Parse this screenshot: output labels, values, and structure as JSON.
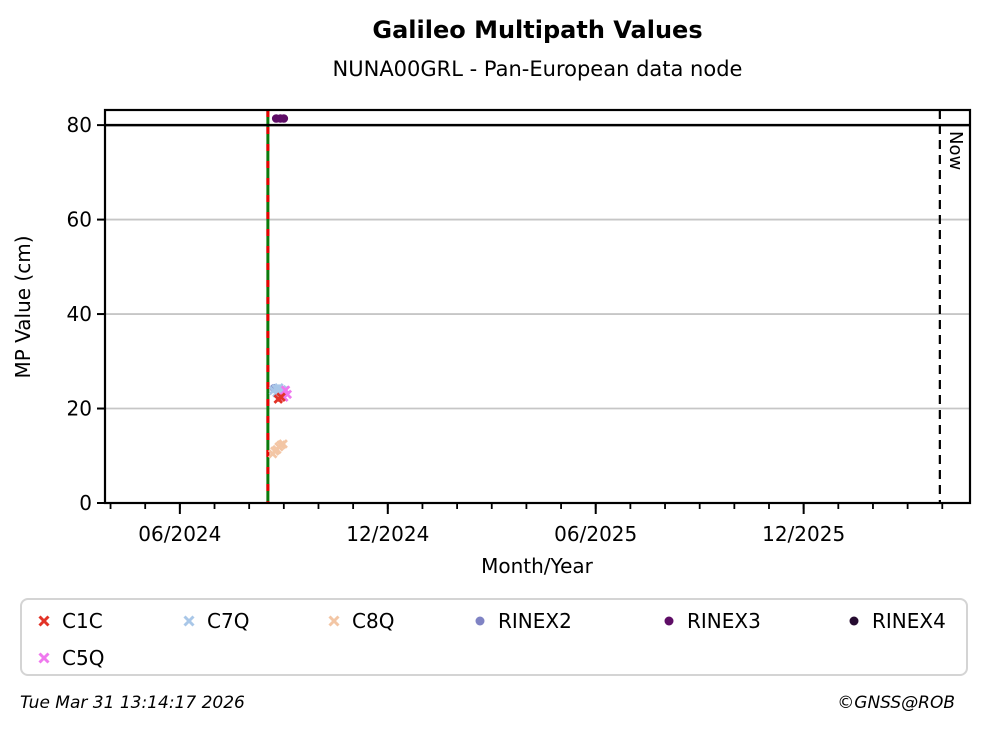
{
  "page": {
    "title": "Galileo Multipath Values",
    "subtitle": "NUNA00GRL - Pan-European data node"
  },
  "footer": {
    "timestamp": "Tue Mar 31 13:14:17 2026",
    "credit": "©GNSS@ROB"
  },
  "chart_data": {
    "type": "scatter",
    "title": "Galileo Multipath Values",
    "subtitle": "NUNA00GRL - Pan-European data node",
    "xlabel": "Month/Year",
    "ylabel": "MP Value (cm)",
    "ylim": [
      0,
      83.2
    ],
    "yticks": [
      0,
      20,
      40,
      60,
      80
    ],
    "grid_on": true,
    "grid_color": "#c6c6c6",
    "frame_color": "#000000",
    "x_axis": {
      "unit": "months offset from 2024-06",
      "lim": [
        -2.16,
        22.8
      ],
      "minor_step": 1,
      "major_ticks": [
        {
          "m": 0,
          "label": "06/2024"
        },
        {
          "m": 6,
          "label": "12/2024"
        },
        {
          "m": 12,
          "label": "06/2025"
        },
        {
          "m": 18,
          "label": "12/2025"
        }
      ]
    },
    "hline": {
      "y": 80,
      "color": "#000000"
    },
    "vlines": [
      {
        "m": 2.54,
        "label": "",
        "style": "solid-green-with-red-dashes",
        "color": "#0b7a0b",
        "dash_color": "#e90000",
        "date": "2024-08"
      },
      {
        "m": 21.93,
        "label": "Now",
        "style": "dashed",
        "color": "#000000",
        "date": "2026-03-31"
      }
    ],
    "series": [
      {
        "name": "C1C",
        "marker": "x",
        "color": "#e23327",
        "z": 5,
        "points": [
          [
            2.84,
            22.0
          ],
          [
            2.92,
            22.4
          ]
        ]
      },
      {
        "name": "C7Q",
        "marker": "x",
        "color": "#a9c7e8",
        "z": 3,
        "points": [
          [
            2.7,
            23.8
          ],
          [
            2.78,
            24.2
          ],
          [
            2.86,
            24.4
          ],
          [
            2.94,
            24.0
          ],
          [
            2.8,
            23.3
          ],
          [
            2.9,
            23.5
          ],
          [
            3.02,
            23.8
          ]
        ]
      },
      {
        "name": "C8Q",
        "marker": "x",
        "color": "#f3c6a5",
        "z": 2,
        "points": [
          [
            2.68,
            10.4
          ],
          [
            2.74,
            11.0
          ],
          [
            2.8,
            11.3
          ],
          [
            2.86,
            11.9
          ],
          [
            2.92,
            12.3
          ],
          [
            2.98,
            12.5
          ]
        ]
      },
      {
        "name": "RINEX2",
        "marker": "o",
        "color": "#7f83c4",
        "z": 1,
        "points": [
          [
            2.72,
            24.3
          ]
        ]
      },
      {
        "name": "RINEX3",
        "marker": "o",
        "color": "#5e0d66",
        "z": 6,
        "points": [
          [
            2.78,
            81.4
          ],
          [
            2.9,
            81.4
          ],
          [
            3.0,
            81.4
          ]
        ]
      },
      {
        "name": "RINEX4",
        "marker": "o",
        "color": "#260b30",
        "z": 0,
        "points": []
      },
      {
        "name": "C5Q",
        "marker": "x",
        "color": "#ef79ee",
        "z": 4,
        "points": [
          [
            3.05,
            23.9
          ],
          [
            3.1,
            23.0
          ],
          [
            3.0,
            22.4
          ]
        ]
      }
    ],
    "legend_position": "bottom",
    "legend_rows": [
      [
        "C1C",
        "C7Q",
        "C8Q",
        "RINEX2",
        "RINEX3",
        "RINEX4"
      ],
      [
        "C5Q"
      ]
    ]
  }
}
